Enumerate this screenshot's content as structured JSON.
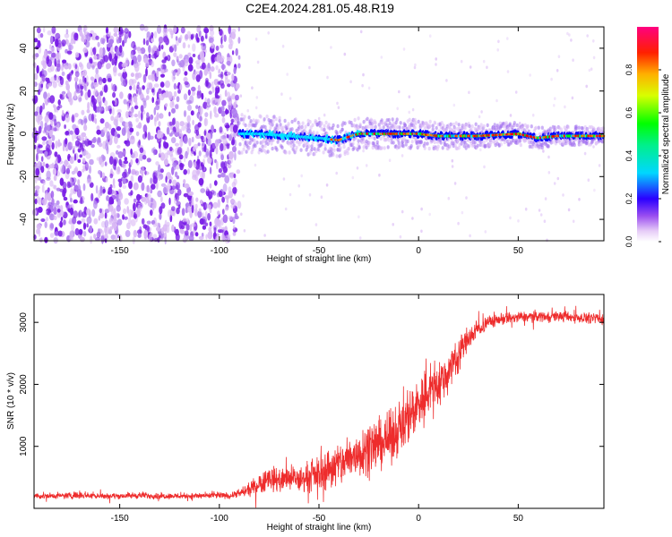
{
  "figure_title": "C2E4.2024.281.05.48.R19",
  "colors": {
    "spectrogram_scale": [
      "#ffffff",
      "#d9b8f5",
      "#7a1ee6",
      "#0000ff",
      "#00e5ff",
      "#00ff00",
      "#ffff00",
      "#ff8000",
      "#ff0000",
      "#ff0080"
    ],
    "snr_line": "#ee2c2c"
  },
  "chart_data": [
    {
      "type": "heatmap",
      "title": "",
      "xlabel": "Height of straight line (km)",
      "ylabel": "Frequency (Hz)",
      "xlim": [
        -193,
        93
      ],
      "ylim": [
        -50,
        50
      ],
      "xticks": [
        -150,
        -100,
        -50,
        0,
        50
      ],
      "xtick_labels": [
        "-150",
        "-100",
        "-50",
        "0",
        "50"
      ],
      "yticks": [
        -40,
        -20,
        0,
        20,
        40
      ],
      "ytick_labels": [
        "-40",
        "-20",
        "0",
        "20",
        "40"
      ],
      "colorbar": {
        "label": "Normalized spectral amplitude",
        "range": [
          0,
          1
        ],
        "ticks": [
          0.0,
          0.2,
          0.4,
          0.6,
          0.8
        ],
        "tick_labels": [
          "0.0",
          "0.2",
          "0.4",
          "0.6",
          "0.8"
        ]
      },
      "features": {
        "noise_region_x": [
          -193,
          -90
        ],
        "signal_onset_x": -90,
        "ridge_center": [
          {
            "x": -90,
            "f": 0
          },
          {
            "x": -80,
            "f": 0
          },
          {
            "x": -65,
            "f": -1
          },
          {
            "x": -50,
            "f": -2
          },
          {
            "x": -40,
            "f": -3
          },
          {
            "x": -30,
            "f": 0
          },
          {
            "x": -20,
            "f": 0
          },
          {
            "x": 0,
            "f": 0
          },
          {
            "x": 10,
            "f": -1
          },
          {
            "x": 30,
            "f": -1
          },
          {
            "x": 50,
            "f": 0
          },
          {
            "x": 60,
            "f": -2
          },
          {
            "x": 70,
            "f": -1
          },
          {
            "x": 93,
            "f": -1
          }
        ]
      }
    },
    {
      "type": "line",
      "title": "",
      "xlabel": "Height of straight line (km)",
      "ylabel": "SNR (10 * v/v)",
      "xlim": [
        -193,
        93
      ],
      "ylim": [
        0,
        3450
      ],
      "xticks": [
        -150,
        -100,
        -50,
        0,
        50
      ],
      "xtick_labels": [
        "-150",
        "-100",
        "-50",
        "0",
        "50"
      ],
      "yticks": [
        1000,
        2000,
        3000
      ],
      "ytick_labels": [
        "1000",
        "2000",
        "3000"
      ],
      "series": [
        {
          "x": [
            -193,
            -180,
            -170,
            -160,
            -150,
            -140,
            -130,
            -120,
            -110,
            -100,
            -95,
            -90,
            -85,
            -80,
            -75,
            -70,
            -65,
            -60,
            -55,
            -50,
            -45,
            -40,
            -35,
            -30,
            -25,
            -20,
            -15,
            -10,
            -5,
            0,
            5,
            10,
            15,
            20,
            25,
            30,
            35,
            40,
            50,
            60,
            70,
            80,
            93
          ],
          "mean": [
            200,
            200,
            220,
            200,
            200,
            210,
            200,
            200,
            200,
            210,
            200,
            240,
            300,
            400,
            500,
            450,
            480,
            450,
            520,
            550,
            650,
            700,
            800,
            900,
            1000,
            1050,
            1100,
            1300,
            1500,
            1700,
            1900,
            2000,
            2200,
            2500,
            2750,
            2900,
            3000,
            3050,
            3080,
            3100,
            3100,
            3080,
            3050
          ],
          "spread": [
            70,
            70,
            90,
            70,
            70,
            80,
            70,
            70,
            70,
            80,
            70,
            100,
            150,
            250,
            300,
            280,
            300,
            300,
            350,
            400,
            500,
            550,
            550,
            600,
            600,
            600,
            600,
            650,
            650,
            650,
            600,
            550,
            500,
            400,
            300,
            200,
            170,
            150,
            140,
            130,
            120,
            120,
            120
          ]
        }
      ]
    }
  ]
}
